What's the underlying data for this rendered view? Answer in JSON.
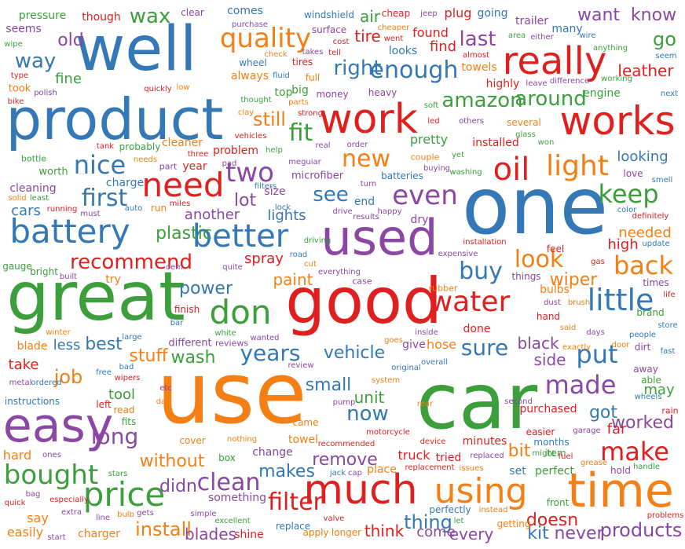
{
  "palette": {
    "blue": "#3478b5",
    "green": "#3c9f3c",
    "red": "#e0201f",
    "orange": "#f47f14",
    "purple": "#8a47a3"
  },
  "words": [
    {
      "t": "car",
      "c": "green"
    },
    {
      "t": "use",
      "c": "orange"
    },
    {
      "t": "one",
      "c": "blue"
    },
    {
      "t": "good",
      "c": "red"
    },
    {
      "t": "great",
      "c": "green"
    },
    {
      "t": "product",
      "c": "blue"
    },
    {
      "t": "well",
      "c": "blue"
    },
    {
      "t": "used",
      "c": "purple"
    },
    {
      "t": "time",
      "c": "orange"
    },
    {
      "t": "easy",
      "c": "purple"
    },
    {
      "t": "much",
      "c": "red"
    },
    {
      "t": "work",
      "c": "red"
    },
    {
      "t": "works",
      "c": "red"
    },
    {
      "t": "really",
      "c": "red"
    },
    {
      "t": "battery",
      "c": "blue"
    },
    {
      "t": "using",
      "c": "orange"
    },
    {
      "t": "price",
      "c": "green"
    },
    {
      "t": "need",
      "c": "red"
    },
    {
      "t": "better",
      "c": "blue"
    },
    {
      "t": "don",
      "c": "green"
    },
    {
      "t": "little",
      "c": "blue"
    },
    {
      "t": "water",
      "c": "red"
    },
    {
      "t": "bought",
      "c": "green"
    },
    {
      "t": "light",
      "c": "orange"
    },
    {
      "t": "oil",
      "c": "red"
    },
    {
      "t": "two",
      "c": "purple"
    },
    {
      "t": "even",
      "c": "purple"
    },
    {
      "t": "nice",
      "c": "blue"
    },
    {
      "t": "quality",
      "c": "orange"
    },
    {
      "t": "back",
      "c": "orange"
    },
    {
      "t": "keep",
      "c": "green"
    },
    {
      "t": "make",
      "c": "red"
    },
    {
      "t": "made",
      "c": "purple"
    },
    {
      "t": "put",
      "c": "blue"
    },
    {
      "t": "clean",
      "c": "purple"
    },
    {
      "t": "enough",
      "c": "blue"
    },
    {
      "t": "filter",
      "c": "red"
    },
    {
      "t": "first",
      "c": "blue"
    },
    {
      "t": "look",
      "c": "orange"
    },
    {
      "t": "fit",
      "c": "green"
    },
    {
      "t": "new",
      "c": "orange"
    },
    {
      "t": "buy",
      "c": "blue"
    },
    {
      "t": "long",
      "c": "purple"
    },
    {
      "t": "years",
      "c": "blue"
    },
    {
      "t": "sure",
      "c": "blue"
    },
    {
      "t": "amazon",
      "c": "green"
    },
    {
      "t": "right",
      "c": "blue"
    },
    {
      "t": "around",
      "c": "green"
    },
    {
      "t": "recommend",
      "c": "red"
    },
    {
      "t": "see",
      "c": "blue"
    },
    {
      "t": "now",
      "c": "blue"
    },
    {
      "t": "thing",
      "c": "blue"
    },
    {
      "t": "install",
      "c": "orange"
    },
    {
      "t": "products",
      "c": "purple"
    },
    {
      "t": "way",
      "c": "blue"
    },
    {
      "t": "wax",
      "c": "green"
    },
    {
      "t": "last",
      "c": "purple"
    },
    {
      "t": "want",
      "c": "purple"
    },
    {
      "t": "still",
      "c": "orange"
    },
    {
      "t": "plastic",
      "c": "green"
    },
    {
      "t": "vehicle",
      "c": "blue"
    },
    {
      "t": "without",
      "c": "orange"
    },
    {
      "t": "small",
      "c": "blue"
    },
    {
      "t": "job",
      "c": "orange"
    },
    {
      "t": "lot",
      "c": "purple"
    },
    {
      "t": "best",
      "c": "blue"
    },
    {
      "t": "power",
      "c": "blue"
    },
    {
      "t": "wash",
      "c": "green"
    },
    {
      "t": "stuff",
      "c": "orange"
    },
    {
      "t": "paint",
      "c": "orange"
    },
    {
      "t": "wiper",
      "c": "orange"
    },
    {
      "t": "go",
      "c": "green"
    },
    {
      "t": "know",
      "c": "purple"
    },
    {
      "t": "leather",
      "c": "red"
    },
    {
      "t": "worked",
      "c": "purple"
    },
    {
      "t": "got",
      "c": "blue"
    },
    {
      "t": "remove",
      "c": "purple"
    },
    {
      "t": "makes",
      "c": "blue"
    },
    {
      "t": "bit",
      "c": "orange"
    },
    {
      "t": "never",
      "c": "purple"
    },
    {
      "t": "kit",
      "c": "blue"
    },
    {
      "t": "doesn",
      "c": "red"
    },
    {
      "t": "blades",
      "c": "purple"
    },
    {
      "t": "didn",
      "c": "purple"
    },
    {
      "t": "think",
      "c": "red"
    },
    {
      "t": "come",
      "c": "purple"
    },
    {
      "t": "every",
      "c": "purple"
    },
    {
      "t": "side",
      "c": "purple"
    },
    {
      "t": "black",
      "c": "purple"
    },
    {
      "t": "far",
      "c": "red"
    },
    {
      "t": "high",
      "c": "red"
    },
    {
      "t": "needed",
      "c": "orange"
    },
    {
      "t": "looking",
      "c": "blue"
    },
    {
      "t": "another",
      "c": "purple"
    },
    {
      "t": "spray",
      "c": "red"
    },
    {
      "t": "lights",
      "c": "blue"
    },
    {
      "t": "tire",
      "c": "red"
    },
    {
      "t": "air",
      "c": "green"
    },
    {
      "t": "tool",
      "c": "green"
    },
    {
      "t": "unit",
      "c": "green"
    },
    {
      "t": "may",
      "c": "green"
    },
    {
      "t": "old",
      "c": "purple"
    },
    {
      "t": "fine",
      "c": "green"
    },
    {
      "t": "cars",
      "c": "blue"
    },
    {
      "t": "take",
      "c": "red"
    },
    {
      "t": "less",
      "c": "blue"
    },
    {
      "t": "hard",
      "c": "orange"
    },
    {
      "t": "say",
      "c": "orange"
    },
    {
      "t": "easily",
      "c": "orange"
    },
    {
      "t": "cleaning",
      "c": "purple"
    },
    {
      "t": "charge",
      "c": "blue"
    },
    {
      "t": "year",
      "c": "red"
    },
    {
      "t": "cleaner",
      "c": "orange"
    },
    {
      "t": "problem",
      "c": "red"
    },
    {
      "t": "microfiber",
      "c": "purple"
    },
    {
      "t": "size",
      "c": "purple"
    },
    {
      "t": "end",
      "c": "blue"
    },
    {
      "t": "dry",
      "c": "purple"
    },
    {
      "t": "pretty",
      "c": "green"
    },
    {
      "t": "installed",
      "c": "red"
    },
    {
      "t": "highly",
      "c": "red"
    },
    {
      "t": "engine",
      "c": "green"
    },
    {
      "t": "towels",
      "c": "orange"
    },
    {
      "t": "found",
      "c": "red"
    },
    {
      "t": "find",
      "c": "red"
    },
    {
      "t": "plug",
      "c": "red"
    },
    {
      "t": "going",
      "c": "blue"
    },
    {
      "t": "trailer",
      "c": "purple"
    },
    {
      "t": "many",
      "c": "blue"
    },
    {
      "t": "comes",
      "c": "blue"
    },
    {
      "t": "always",
      "c": "orange"
    },
    {
      "t": "looks",
      "c": "blue"
    },
    {
      "t": "top",
      "c": "green"
    },
    {
      "t": "big",
      "c": "green"
    },
    {
      "t": "pressure",
      "c": "green"
    },
    {
      "t": "though",
      "c": "red"
    },
    {
      "t": "seems",
      "c": "purple"
    },
    {
      "t": "clear",
      "c": "purple"
    },
    {
      "t": "windshield",
      "c": "blue"
    },
    {
      "t": "cheap",
      "c": "red"
    },
    {
      "t": "wheel",
      "c": "blue"
    },
    {
      "t": "tires",
      "c": "red"
    },
    {
      "t": "fluid",
      "c": "blue"
    },
    {
      "t": "full",
      "c": "orange"
    },
    {
      "t": "money",
      "c": "purple"
    },
    {
      "t": "heavy",
      "c": "purple"
    },
    {
      "t": "batteries",
      "c": "blue"
    },
    {
      "t": "couple",
      "c": "orange"
    },
    {
      "t": "several",
      "c": "orange"
    },
    {
      "t": "glass",
      "c": "green"
    },
    {
      "t": "bulbs",
      "c": "orange"
    },
    {
      "t": "things",
      "c": "purple"
    },
    {
      "t": "times",
      "c": "purple"
    },
    {
      "t": "brand",
      "c": "green"
    },
    {
      "t": "able",
      "c": "green"
    },
    {
      "t": "away",
      "c": "purple"
    },
    {
      "t": "wheels",
      "c": "blue"
    },
    {
      "t": "rain",
      "c": "red"
    },
    {
      "t": "hose",
      "c": "orange"
    },
    {
      "t": "give",
      "c": "purple"
    },
    {
      "t": "done",
      "c": "red"
    },
    {
      "t": "minutes",
      "c": "red"
    },
    {
      "t": "purchased",
      "c": "red"
    },
    {
      "t": "perfect",
      "c": "green"
    },
    {
      "t": "set",
      "c": "blue"
    },
    {
      "t": "truck",
      "c": "red"
    },
    {
      "t": "tried",
      "c": "red"
    },
    {
      "t": "place",
      "c": "orange"
    },
    {
      "t": "change",
      "c": "purple"
    },
    {
      "t": "towel",
      "c": "orange"
    },
    {
      "t": "something",
      "c": "purple"
    },
    {
      "t": "shine",
      "c": "red"
    },
    {
      "t": "replace",
      "c": "blue"
    },
    {
      "t": "longer",
      "c": "orange"
    },
    {
      "t": "apply",
      "c": "orange"
    },
    {
      "t": "charger",
      "c": "orange"
    },
    {
      "t": "simple",
      "c": "purple"
    },
    {
      "t": "excellent",
      "c": "green"
    },
    {
      "t": "box",
      "c": "green"
    },
    {
      "t": "cover",
      "c": "orange"
    },
    {
      "t": "different",
      "c": "purple"
    },
    {
      "t": "reviews",
      "c": "purple"
    },
    {
      "t": "white",
      "c": "green"
    },
    {
      "t": "finish",
      "c": "red"
    },
    {
      "t": "try",
      "c": "orange"
    },
    {
      "t": "blade",
      "c": "orange"
    },
    {
      "t": "front",
      "c": "green"
    },
    {
      "t": "getting",
      "c": "orange"
    },
    {
      "t": "hold",
      "c": "purple"
    },
    {
      "t": "instead",
      "c": "orange"
    },
    {
      "t": "perfectly",
      "c": "blue"
    },
    {
      "t": "easier",
      "c": "red"
    },
    {
      "t": "months",
      "c": "blue"
    },
    {
      "t": "item",
      "c": "green"
    },
    {
      "t": "second",
      "c": "purple"
    },
    {
      "t": "hand",
      "c": "red"
    },
    {
      "t": "feel",
      "c": "red"
    },
    {
      "t": "love",
      "c": "purple"
    },
    {
      "t": "problems",
      "c": "red"
    },
    {
      "t": "handle",
      "c": "green"
    },
    {
      "t": "store",
      "c": "blue"
    },
    {
      "t": "door",
      "c": "orange"
    },
    {
      "t": "dirt",
      "c": "purple"
    },
    {
      "t": "people",
      "c": "blue"
    },
    {
      "t": "life",
      "c": "red"
    },
    {
      "t": "days",
      "c": "purple"
    },
    {
      "t": "exactly",
      "c": "orange"
    },
    {
      "t": "said",
      "c": "orange"
    },
    {
      "t": "dust",
      "c": "purple"
    },
    {
      "t": "brush",
      "c": "orange"
    },
    {
      "t": "bright",
      "c": "green"
    },
    {
      "t": "gauge",
      "c": "green"
    },
    {
      "t": "quite",
      "c": "purple"
    },
    {
      "t": "everything",
      "c": "purple"
    },
    {
      "t": "case",
      "c": "purple"
    },
    {
      "t": "rubber",
      "c": "orange"
    },
    {
      "t": "inside",
      "c": "purple"
    },
    {
      "t": "goes",
      "c": "orange"
    },
    {
      "t": "wanted",
      "c": "purple"
    },
    {
      "t": "review",
      "c": "purple"
    },
    {
      "t": "original",
      "c": "blue"
    },
    {
      "t": "overall",
      "c": "blue"
    },
    {
      "t": "system",
      "c": "orange"
    },
    {
      "t": "pump",
      "c": "purple"
    },
    {
      "t": "rear",
      "c": "orange"
    },
    {
      "t": "came",
      "c": "orange"
    },
    {
      "t": "device",
      "c": "red"
    },
    {
      "t": "motorcycle",
      "c": "red"
    },
    {
      "t": "nothing",
      "c": "orange"
    },
    {
      "t": "fits",
      "c": "green"
    },
    {
      "t": "read",
      "c": "orange"
    },
    {
      "t": "left",
      "c": "red"
    },
    {
      "t": "instructions",
      "c": "blue"
    },
    {
      "t": "metal",
      "c": "purple"
    },
    {
      "t": "ordered",
      "c": "blue"
    },
    {
      "t": "wipers",
      "c": "red"
    },
    {
      "t": "free",
      "c": "blue"
    },
    {
      "t": "bad",
      "c": "blue"
    },
    {
      "t": "winter",
      "c": "orange"
    },
    {
      "t": "large",
      "c": "blue"
    },
    {
      "t": "bar",
      "c": "blue"
    },
    {
      "t": "auto",
      "c": "blue"
    },
    {
      "t": "must",
      "c": "purple"
    },
    {
      "t": "solid",
      "c": "orange"
    },
    {
      "t": "least",
      "c": "green"
    },
    {
      "t": "running",
      "c": "red"
    },
    {
      "t": "bottle",
      "c": "green"
    },
    {
      "t": "worth",
      "c": "green"
    },
    {
      "t": "tank",
      "c": "red"
    },
    {
      "t": "probably",
      "c": "green"
    },
    {
      "t": "needs",
      "c": "orange"
    },
    {
      "t": "three",
      "c": "red"
    },
    {
      "t": "part",
      "c": "purple"
    },
    {
      "t": "pad",
      "c": "purple"
    },
    {
      "t": "clay",
      "c": "orange"
    },
    {
      "t": "vehicles",
      "c": "red"
    },
    {
      "t": "help",
      "c": "green"
    },
    {
      "t": "meguiar",
      "c": "purple"
    },
    {
      "t": "order",
      "c": "purple"
    },
    {
      "t": "real",
      "c": "purple"
    },
    {
      "t": "buying",
      "c": "purple"
    },
    {
      "t": "washing",
      "c": "green"
    },
    {
      "t": "turn",
      "c": "purple"
    },
    {
      "t": "drive",
      "c": "purple"
    },
    {
      "t": "results",
      "c": "purple"
    },
    {
      "t": "happy",
      "c": "purple"
    },
    {
      "t": "installation",
      "c": "red"
    },
    {
      "t": "expensive",
      "c": "purple"
    },
    {
      "t": "road",
      "c": "blue"
    },
    {
      "t": "cut",
      "c": "orange"
    },
    {
      "t": "miles",
      "c": "red"
    },
    {
      "t": "oem",
      "c": "purple"
    },
    {
      "t": "built",
      "c": "purple"
    },
    {
      "t": "gas",
      "c": "red"
    },
    {
      "t": "color",
      "c": "blue"
    },
    {
      "t": "definitely",
      "c": "red"
    },
    {
      "t": "update",
      "c": "blue"
    },
    {
      "t": "smell",
      "c": "blue"
    },
    {
      "t": "won",
      "c": "green"
    },
    {
      "t": "yet",
      "c": "green"
    },
    {
      "t": "others",
      "c": "purple"
    },
    {
      "t": "led",
      "c": "red"
    },
    {
      "t": "soft",
      "c": "green"
    },
    {
      "t": "thought",
      "c": "green"
    },
    {
      "t": "parts",
      "c": "orange"
    },
    {
      "t": "strong",
      "c": "red"
    },
    {
      "t": "check",
      "c": "orange"
    },
    {
      "t": "takes",
      "c": "purple"
    },
    {
      "t": "tell",
      "c": "red"
    },
    {
      "t": "surface",
      "c": "purple"
    },
    {
      "t": "cost",
      "c": "red"
    },
    {
      "t": "purchase",
      "c": "purple"
    },
    {
      "t": "went",
      "c": "red"
    },
    {
      "t": "cheaper",
      "c": "orange"
    },
    {
      "t": "jeep",
      "c": "purple"
    },
    {
      "t": "almost",
      "c": "red"
    },
    {
      "t": "area",
      "c": "green"
    },
    {
      "t": "either",
      "c": "purple"
    },
    {
      "t": "wire",
      "c": "blue"
    },
    {
      "t": "anything",
      "c": "green"
    },
    {
      "t": "next",
      "c": "blue"
    },
    {
      "t": "seem",
      "c": "blue"
    },
    {
      "t": "leave",
      "c": "purple"
    },
    {
      "t": "difference",
      "c": "purple"
    },
    {
      "t": "working",
      "c": "green"
    },
    {
      "t": "wipe",
      "c": "green"
    },
    {
      "t": "type",
      "c": "red"
    },
    {
      "t": "took",
      "c": "orange"
    },
    {
      "t": "polish",
      "c": "purple"
    },
    {
      "t": "bike",
      "c": "red"
    },
    {
      "t": "quickly",
      "c": "red"
    },
    {
      "t": "low",
      "c": "orange"
    },
    {
      "t": "lock",
      "c": "blue"
    },
    {
      "t": "driving",
      "c": "green"
    },
    {
      "t": "filters",
      "c": "blue"
    },
    {
      "t": "run",
      "c": "orange"
    },
    {
      "t": "etc",
      "c": "purple"
    },
    {
      "t": "day",
      "c": "orange"
    },
    {
      "t": "fuel",
      "c": "red"
    },
    {
      "t": "garage",
      "c": "purple"
    },
    {
      "t": "might",
      "c": "green"
    },
    {
      "t": "grease",
      "c": "orange"
    },
    {
      "t": "fast",
      "c": "blue"
    },
    {
      "t": "replaced",
      "c": "purple"
    },
    {
      "t": "issues",
      "c": "orange"
    },
    {
      "t": "replacement",
      "c": "red"
    },
    {
      "t": "recommended",
      "c": "red"
    },
    {
      "t": "jack",
      "c": "blue"
    },
    {
      "t": "cap",
      "c": "purple"
    },
    {
      "t": "valve",
      "c": "red"
    },
    {
      "t": "let",
      "c": "green"
    },
    {
      "t": "stars",
      "c": "green"
    },
    {
      "t": "bag",
      "c": "purple"
    },
    {
      "t": "quick",
      "c": "red"
    },
    {
      "t": "especially",
      "c": "red"
    },
    {
      "t": "extra",
      "c": "purple"
    },
    {
      "t": "line",
      "c": "purple"
    },
    {
      "t": "bulb",
      "c": "orange"
    },
    {
      "t": "gets",
      "c": "purple"
    },
    {
      "t": "start",
      "c": "purple"
    },
    {
      "t": "ones",
      "c": "purple"
    }
  ]
}
